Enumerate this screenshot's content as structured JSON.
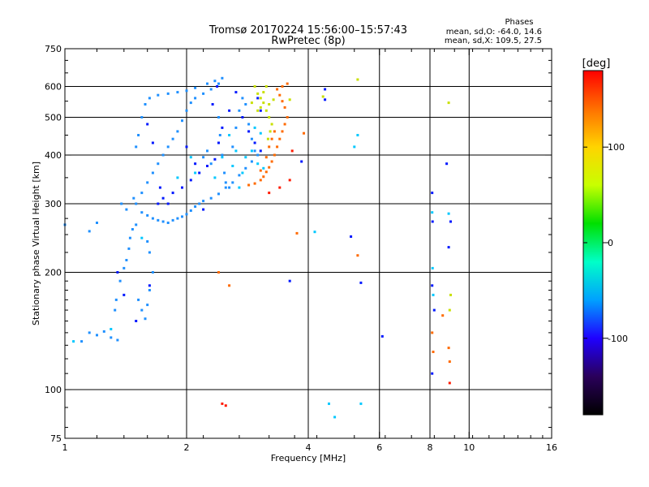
{
  "chart_data": {
    "type": "scatter",
    "title": "Tromsø 20170224 15:56:00–15:57:43",
    "subtitle": "RwPretec (8p)",
    "stats": {
      "heading": "Phases",
      "line1": "mean, sd,O: -64.0, 14.6",
      "line2": "mean, sd,X: 109.5, 27.5"
    },
    "xlabel": "Frequency [MHz]",
    "ylabel": "Stationary phase Virtual Height [km]",
    "xscale": "log",
    "yscale": "log",
    "xlim": [
      1,
      16
    ],
    "ylim": [
      75,
      750
    ],
    "xticks": [
      "1",
      "2",
      "4",
      "6",
      "8",
      "10",
      "16"
    ],
    "yticks": [
      "75",
      "100",
      "200",
      "300",
      "400",
      "500",
      "600",
      "750"
    ],
    "grid": true,
    "colorbar": {
      "label": "[deg]",
      "range": [
        -180,
        180
      ],
      "ticks": [
        "100",
        "0",
        "-100"
      ],
      "colors": [
        "#000000",
        "#2a005a",
        "#1f00ff",
        "#00a0ff",
        "#00ffc8",
        "#00e000",
        "#c8ff00",
        "#ffd400",
        "#ff7000",
        "#ff0000"
      ]
    },
    "series": [
      {
        "color": "#1f90ff",
        "points": [
          [
            1.1,
            133
          ],
          [
            1.15,
            140
          ],
          [
            1.2,
            138
          ],
          [
            1.25,
            141
          ],
          [
            1.3,
            136
          ],
          [
            1.35,
            134
          ],
          [
            1.33,
            160
          ],
          [
            1.34,
            170
          ],
          [
            1.37,
            190
          ],
          [
            1.4,
            205
          ],
          [
            1.42,
            215
          ],
          [
            1.44,
            230
          ],
          [
            1.45,
            245
          ],
          [
            1.47,
            258
          ],
          [
            1.5,
            265
          ],
          [
            1.52,
            170
          ],
          [
            1.55,
            160
          ],
          [
            1.58,
            152
          ],
          [
            1.6,
            165
          ],
          [
            1.62,
            180
          ],
          [
            1.65,
            200
          ],
          [
            1.62,
            225
          ],
          [
            1.6,
            240
          ],
          [
            1.55,
            285
          ],
          [
            1.6,
            280
          ],
          [
            1.65,
            275
          ],
          [
            1.7,
            272
          ],
          [
            1.75,
            270
          ],
          [
            1.8,
            268
          ],
          [
            1.85,
            272
          ],
          [
            1.9,
            275
          ],
          [
            1.95,
            278
          ],
          [
            2.0,
            282
          ],
          [
            2.05,
            288
          ],
          [
            2.1,
            295
          ],
          [
            2.15,
            300
          ],
          [
            2.2,
            305
          ],
          [
            2.3,
            310
          ],
          [
            2.4,
            318
          ],
          [
            2.5,
            330
          ],
          [
            2.6,
            340
          ],
          [
            2.7,
            355
          ],
          [
            2.8,
            370
          ],
          [
            2.9,
            385
          ],
          [
            3.0,
            400
          ],
          [
            1.5,
            300
          ],
          [
            1.55,
            320
          ],
          [
            1.6,
            340
          ],
          [
            1.65,
            360
          ],
          [
            1.7,
            380
          ],
          [
            1.75,
            400
          ],
          [
            1.8,
            420
          ],
          [
            1.85,
            440
          ],
          [
            1.9,
            460
          ],
          [
            1.95,
            490
          ],
          [
            2.0,
            520
          ],
          [
            2.05,
            545
          ],
          [
            2.1,
            560
          ],
          [
            2.2,
            575
          ],
          [
            2.3,
            590
          ],
          [
            2.4,
            610
          ],
          [
            2.45,
            630
          ],
          [
            1.5,
            420
          ],
          [
            1.52,
            450
          ],
          [
            1.55,
            500
          ],
          [
            1.58,
            540
          ],
          [
            1.62,
            560
          ],
          [
            1.7,
            570
          ],
          [
            1.8,
            575
          ],
          [
            1.9,
            580
          ],
          [
            2.0,
            585
          ],
          [
            2.1,
            595
          ],
          [
            2.25,
            610
          ],
          [
            2.35,
            620
          ],
          [
            2.4,
            500
          ],
          [
            2.42,
            450
          ],
          [
            2.45,
            400
          ],
          [
            2.48,
            360
          ],
          [
            2.5,
            340
          ],
          [
            2.55,
            330
          ],
          [
            2.6,
            420
          ],
          [
            2.65,
            470
          ],
          [
            2.7,
            520
          ],
          [
            2.75,
            560
          ],
          [
            2.8,
            540
          ],
          [
            2.85,
            480
          ],
          [
            2.9,
            440
          ],
          [
            2.95,
            410
          ],
          [
            1.0,
            265
          ],
          [
            1.15,
            255
          ],
          [
            1.2,
            268
          ],
          [
            1.38,
            300
          ],
          [
            1.42,
            290
          ],
          [
            1.48,
            310
          ],
          [
            2.2,
            395
          ],
          [
            2.25,
            410
          ],
          [
            2.3,
            380
          ]
        ]
      },
      {
        "color": "#0018ff",
        "points": [
          [
            1.35,
            200
          ],
          [
            1.4,
            175
          ],
          [
            1.5,
            150
          ],
          [
            1.62,
            185
          ],
          [
            1.7,
            300
          ],
          [
            1.75,
            310
          ],
          [
            1.85,
            320
          ],
          [
            1.95,
            330
          ],
          [
            2.05,
            345
          ],
          [
            2.15,
            360
          ],
          [
            2.25,
            375
          ],
          [
            2.35,
            390
          ],
          [
            2.4,
            430
          ],
          [
            2.45,
            470
          ],
          [
            2.55,
            520
          ],
          [
            2.65,
            580
          ],
          [
            2.75,
            500
          ],
          [
            2.85,
            460
          ],
          [
            2.95,
            430
          ],
          [
            3.05,
            410
          ],
          [
            1.6,
            480
          ],
          [
            1.65,
            430
          ],
          [
            1.72,
            330
          ],
          [
            1.8,
            300
          ],
          [
            2.0,
            420
          ],
          [
            2.1,
            380
          ],
          [
            2.2,
            290
          ],
          [
            2.32,
            540
          ],
          [
            2.38,
            600
          ],
          [
            3.0,
            560
          ],
          [
            3.05,
            520
          ],
          [
            3.6,
            190
          ],
          [
            3.85,
            385
          ],
          [
            4.4,
            590
          ],
          [
            4.4,
            555
          ],
          [
            5.1,
            247
          ],
          [
            5.4,
            188
          ],
          [
            6.1,
            137
          ],
          [
            8.1,
            110
          ],
          [
            8.1,
            320
          ],
          [
            8.12,
            270
          ],
          [
            8.1,
            185
          ],
          [
            8.2,
            160
          ],
          [
            8.8,
            380
          ],
          [
            8.9,
            232
          ],
          [
            9.0,
            270
          ]
        ]
      },
      {
        "color": "#00c8ff",
        "points": [
          [
            1.05,
            133
          ],
          [
            1.3,
            143
          ],
          [
            1.55,
            245
          ],
          [
            1.9,
            350
          ],
          [
            2.05,
            395
          ],
          [
            2.1,
            360
          ],
          [
            2.35,
            350
          ],
          [
            2.45,
            395
          ],
          [
            2.55,
            450
          ],
          [
            2.6,
            375
          ],
          [
            2.65,
            410
          ],
          [
            2.7,
            330
          ],
          [
            2.75,
            360
          ],
          [
            2.8,
            395
          ],
          [
            2.9,
            410
          ],
          [
            3.0,
            380
          ],
          [
            3.1,
            370
          ],
          [
            2.95,
            470
          ],
          [
            3.05,
            455
          ],
          [
            4.15,
            254
          ],
          [
            4.5,
            92
          ],
          [
            4.65,
            85
          ],
          [
            5.2,
            420
          ],
          [
            5.3,
            450
          ],
          [
            5.4,
            92
          ],
          [
            8.1,
            285
          ],
          [
            8.12,
            205
          ],
          [
            8.15,
            175
          ],
          [
            8.9,
            283
          ]
        ]
      },
      {
        "color": "#c8e000",
        "points": [
          [
            2.95,
            600
          ],
          [
            3.0,
            575
          ],
          [
            3.05,
            560
          ],
          [
            3.1,
            545
          ],
          [
            3.15,
            520
          ],
          [
            3.2,
            500
          ],
          [
            3.25,
            480
          ],
          [
            3.22,
            460
          ],
          [
            3.18,
            440
          ],
          [
            3.1,
            580
          ],
          [
            3.15,
            600
          ],
          [
            3.05,
            530
          ],
          [
            3.2,
            540
          ],
          [
            3.28,
            555
          ],
          [
            3.0,
            520
          ],
          [
            2.9,
            545
          ],
          [
            3.6,
            555
          ],
          [
            4.35,
            565
          ],
          [
            5.3,
            625
          ],
          [
            8.9,
            545
          ],
          [
            8.95,
            160
          ],
          [
            9.0,
            175
          ]
        ]
      },
      {
        "color": "#ff6a00",
        "points": [
          [
            2.85,
            335
          ],
          [
            2.95,
            338
          ],
          [
            3.05,
            345
          ],
          [
            3.1,
            352
          ],
          [
            3.15,
            362
          ],
          [
            3.2,
            372
          ],
          [
            3.25,
            385
          ],
          [
            3.3,
            400
          ],
          [
            3.35,
            420
          ],
          [
            3.4,
            440
          ],
          [
            3.45,
            460
          ],
          [
            3.5,
            480
          ],
          [
            3.55,
            500
          ],
          [
            3.5,
            530
          ],
          [
            3.45,
            550
          ],
          [
            3.4,
            570
          ],
          [
            3.35,
            590
          ],
          [
            3.45,
            600
          ],
          [
            3.55,
            610
          ],
          [
            3.25,
            440
          ],
          [
            3.3,
            460
          ],
          [
            3.2,
            420
          ],
          [
            3.15,
            395
          ],
          [
            3.05,
            365
          ],
          [
            2.4,
            200
          ],
          [
            2.55,
            185
          ],
          [
            3.75,
            252
          ],
          [
            3.9,
            455
          ],
          [
            5.3,
            221
          ],
          [
            8.1,
            140
          ],
          [
            8.15,
            125
          ],
          [
            8.6,
            155
          ],
          [
            8.9,
            128
          ],
          [
            8.95,
            118
          ]
        ]
      },
      {
        "color": "#ff1a00",
        "points": [
          [
            2.45,
            92
          ],
          [
            2.5,
            91
          ],
          [
            3.2,
            320
          ],
          [
            3.4,
            330
          ],
          [
            3.6,
            345
          ],
          [
            3.65,
            410
          ],
          [
            8.95,
            104
          ]
        ]
      }
    ]
  }
}
